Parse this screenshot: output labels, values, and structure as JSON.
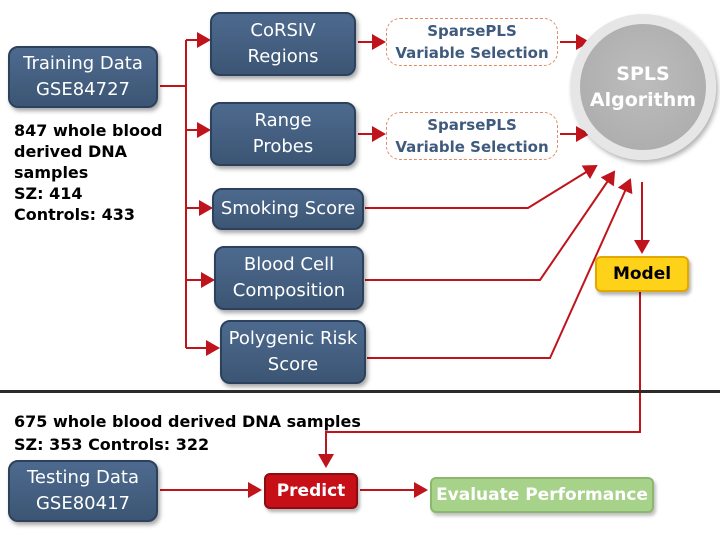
{
  "training": {
    "line1": "Training Data",
    "line2": "GSE84727"
  },
  "training_info": {
    "line1": "847 whole blood",
    "line2": "derived DNA",
    "line3": "samples",
    "line4": "SZ: 414",
    "line5": "Controls: 433"
  },
  "features": {
    "corsiv": {
      "line1": "CoRSIV",
      "line2": "Regions"
    },
    "range": {
      "line1": "Range",
      "line2": "Probes"
    },
    "smoking": {
      "line1": "Smoking Score"
    },
    "blood": {
      "line1": "Blood Cell",
      "line2": "Composition"
    },
    "prs": {
      "line1": "Polygenic Risk",
      "line2": "Score"
    }
  },
  "sparsepls_1": {
    "line1": "SparsePLS",
    "line2": "Variable Selection"
  },
  "sparsepls_2": {
    "line1": "SparsePLS",
    "line2": "Variable Selection"
  },
  "algorithm": {
    "line1": "SPLS",
    "line2": "Algorithm"
  },
  "model": {
    "label": "Model"
  },
  "testing_info": {
    "line1": "675 whole blood derived DNA samples",
    "line2": "SZ: 353 Controls: 322"
  },
  "testing": {
    "line1": "Testing Data",
    "line2": "GSE80417"
  },
  "predict": {
    "label": "Predict"
  },
  "evaluate": {
    "label": "Evaluate Performance"
  },
  "colors": {
    "arrow": "#c0141c",
    "box_blue": "#45617f",
    "model_yellow": "#ffd21a",
    "predict_red": "#c70f18",
    "evaluate_green": "#a7d28a",
    "circle_grey": "#b3b3b3"
  }
}
